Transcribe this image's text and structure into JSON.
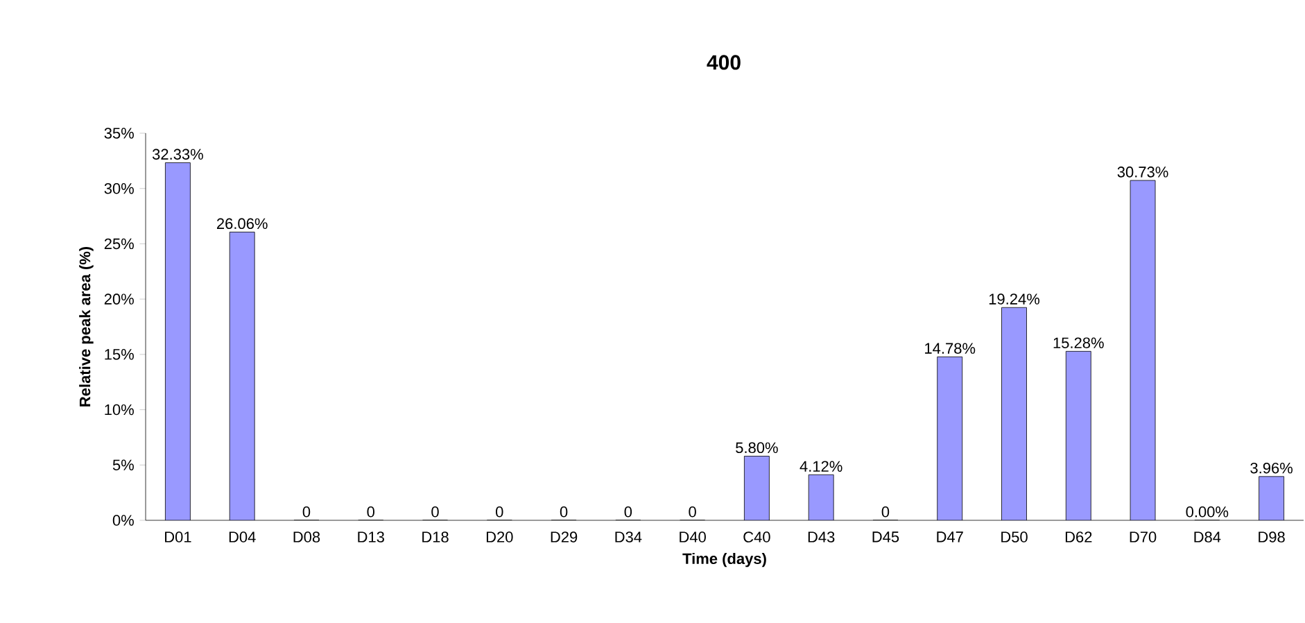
{
  "chart_data": {
    "type": "bar",
    "title": "400",
    "xlabel": "Time (days)",
    "ylabel": "Relative peak area (%)",
    "categories": [
      "D01",
      "D04",
      "D08",
      "D13",
      "D18",
      "D20",
      "D29",
      "D34",
      "D40",
      "C40",
      "D43",
      "D45",
      "D47",
      "D50",
      "D62",
      "D70",
      "D84",
      "D98"
    ],
    "values": [
      32.33,
      26.06,
      0,
      0,
      0,
      0,
      0,
      0,
      0,
      5.8,
      4.12,
      0,
      14.78,
      19.24,
      15.28,
      30.73,
      0,
      3.96
    ],
    "value_labels": [
      "32.33%",
      "26.06%",
      "0",
      "0",
      "0",
      "0",
      "0",
      "0",
      "0",
      "5.80%",
      "4.12%",
      "0",
      "14.78%",
      "19.24%",
      "15.28%",
      "30.73%",
      "0.00%",
      "3.96%"
    ],
    "color": "#9999ff",
    "ylim": [
      0,
      35
    ],
    "yticks": [
      {
        "value": 0,
        "label": "0%"
      },
      {
        "value": 5,
        "label": "5%"
      },
      {
        "value": 10,
        "label": "10%"
      },
      {
        "value": 15,
        "label": "15%"
      },
      {
        "value": 20,
        "label": "20%"
      },
      {
        "value": 25,
        "label": "25%"
      },
      {
        "value": 30,
        "label": "30%"
      },
      {
        "value": 35,
        "label": "35%"
      }
    ]
  }
}
